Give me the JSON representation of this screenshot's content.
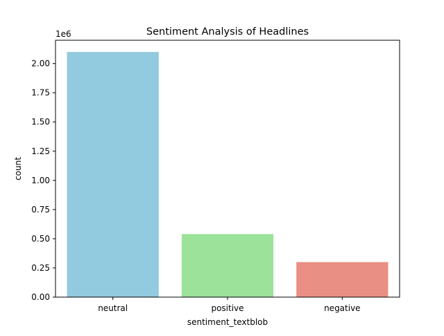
{
  "chart_data": {
    "type": "bar",
    "title": "Sentiment Analysis of Headlines",
    "xlabel": "sentiment_textblob",
    "ylabel": "count",
    "y_offset_label": "1e6",
    "categories": [
      "neutral",
      "positive",
      "negative"
    ],
    "values": [
      2100000,
      540000,
      300000
    ],
    "colors": [
      "#92cadf",
      "#9ce29a",
      "#e98f83"
    ],
    "ylim": [
      0,
      2200000
    ],
    "yticks": [
      0,
      250000,
      500000,
      750000,
      1000000,
      1250000,
      1500000,
      1750000,
      2000000
    ],
    "ytick_labels": [
      "0.00",
      "0.25",
      "0.50",
      "0.75",
      "1.00",
      "1.25",
      "1.50",
      "1.75",
      "2.00"
    ],
    "grid": false,
    "legend": "none"
  }
}
